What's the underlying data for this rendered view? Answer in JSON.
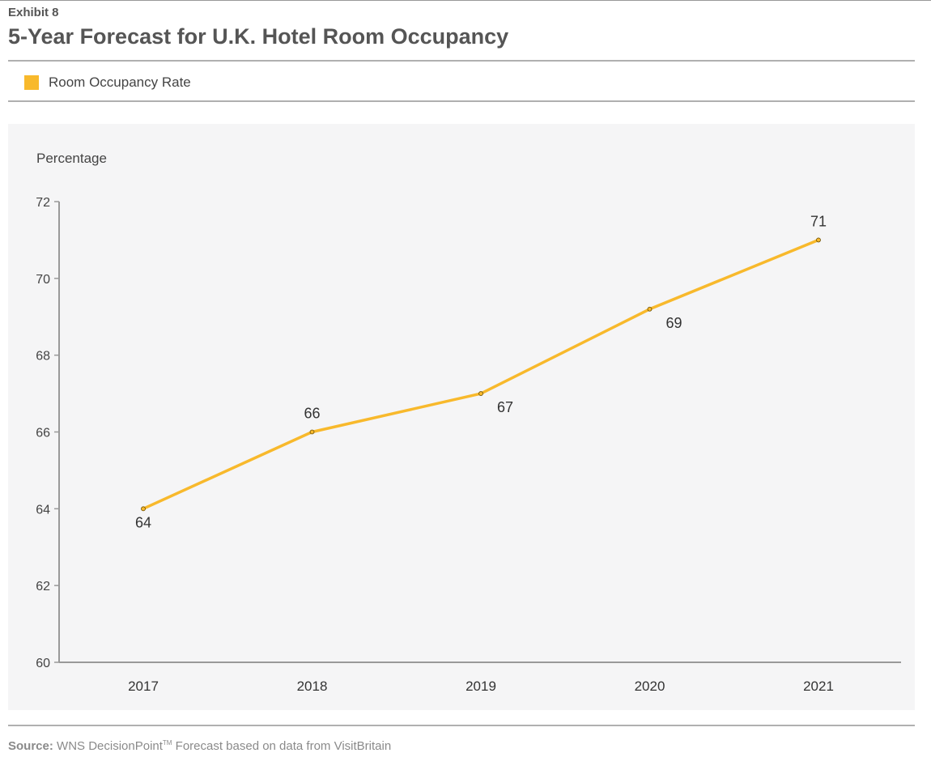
{
  "header": {
    "exhibit": "Exhibit 8",
    "title": "5-Year Forecast for U.K. Hotel Room Occupancy"
  },
  "legend": {
    "label": "Room Occupancy Rate",
    "color": "#f8b92c"
  },
  "source": {
    "prefix": "Source:",
    "brand": "WNS DecisionPoint",
    "tm": "TM",
    "rest": " Forecast based on data from VisitBritain"
  },
  "chart_data": {
    "type": "line",
    "ylabel": "Percentage",
    "xlabel": "",
    "ylim": [
      60,
      72
    ],
    "yticks": [
      60,
      62,
      64,
      66,
      68,
      70,
      72
    ],
    "categories": [
      "2017",
      "2018",
      "2019",
      "2020",
      "2021"
    ],
    "series": [
      {
        "name": "Room Occupancy Rate",
        "color": "#f8b92c",
        "values": [
          64,
          66,
          67,
          69.2,
          71
        ],
        "labels": [
          "64",
          "66",
          "67",
          "69",
          "71"
        ],
        "label_positions": [
          "below",
          "above",
          "below",
          "below",
          "above"
        ]
      }
    ],
    "grid": false,
    "legend": "top-left"
  }
}
